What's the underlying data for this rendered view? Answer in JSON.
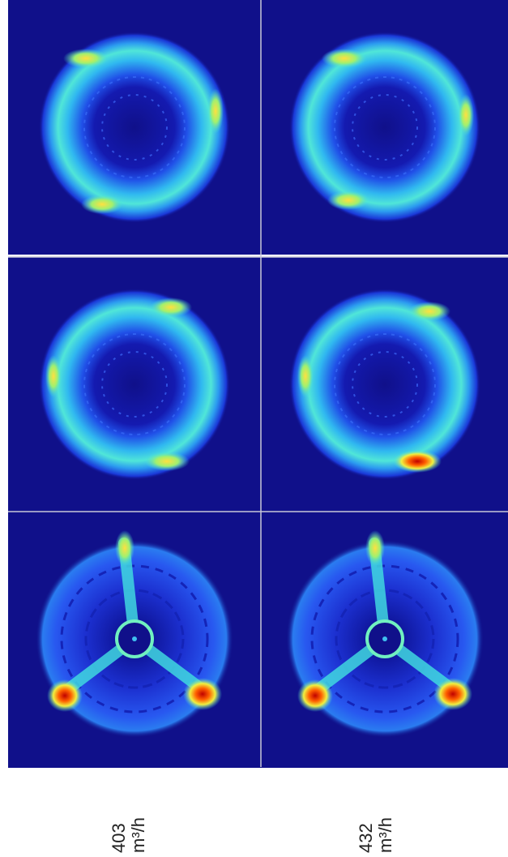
{
  "labels": [
    {
      "lines": [
        "403",
        "m³/h"
      ]
    },
    {
      "lines": [
        "432",
        "m³/h"
      ]
    }
  ]
}
